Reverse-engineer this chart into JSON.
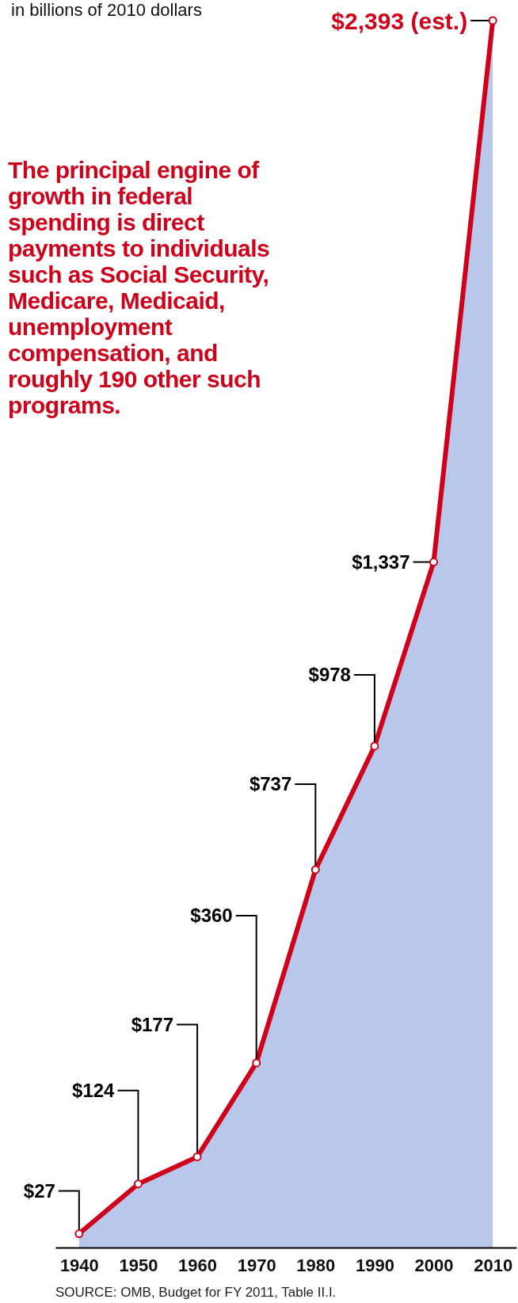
{
  "chart_data": {
    "type": "area",
    "subtitle": "in billions of 2010 dollars",
    "x": [
      1940,
      1950,
      1960,
      1970,
      1980,
      1990,
      2000,
      2010
    ],
    "series": [
      {
        "color": "#b9c8ea",
        "values": [
          27,
          124,
          177,
          360,
          737,
          978,
          1337,
          2393
        ]
      },
      {
        "type": "line",
        "color": "#d0021b",
        "marker": "circle",
        "values": [
          27,
          124,
          177,
          360,
          737,
          978,
          1337,
          2393
        ],
        "value_labels": [
          "$27",
          "$124",
          "$177",
          "$360",
          "$737",
          "$978",
          "$1,337",
          "$2,393 (est.)"
        ]
      }
    ],
    "xlim": [
      1936,
      2014
    ],
    "xticks": [
      1940,
      1950,
      1960,
      1970,
      1980,
      1990,
      2000,
      2010
    ],
    "tick_labels": "x",
    "annotations": [
      "The principal engine of growth in federal spending is direct payments to individuals such as Social Security, Medicare, Medicaid, unemployment compensation, and roughly 190 other such programs.",
      "SOURCE: OMB, Budget for FY 2011, Table II.I."
    ]
  }
}
